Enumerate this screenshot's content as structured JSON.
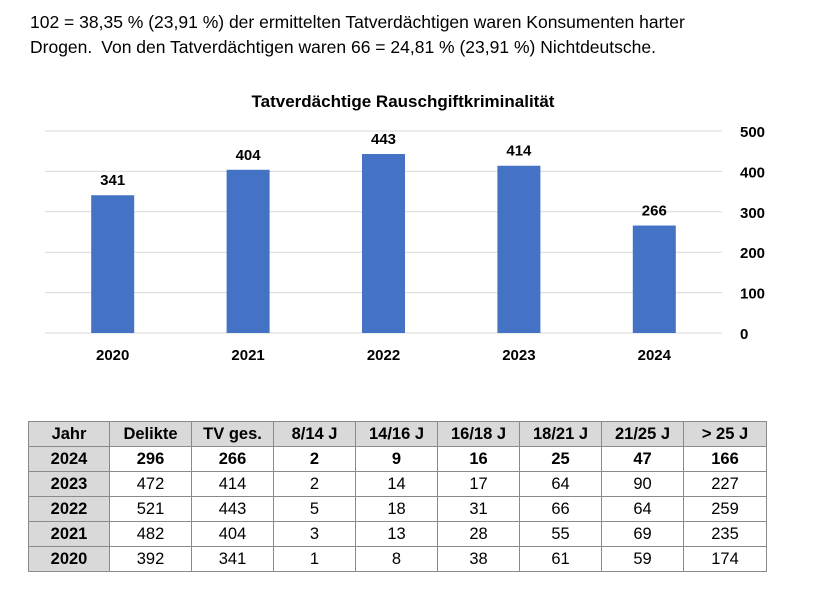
{
  "intro": {
    "line1": "102 = 38,35 % (23,91 %) der ermittelten Tatverdächtigen waren Konsumenten harter",
    "line2a": "Drogen.",
    "line2b": "Von den Tatverdächtigen waren 66 = 24,81 % (23,91 %) Nichtdeutsche."
  },
  "chart_data": {
    "type": "bar",
    "title": "Tatverdächtige Rauschgiftkriminalität",
    "categories": [
      "2020",
      "2021",
      "2022",
      "2023",
      "2024"
    ],
    "values": [
      341,
      404,
      443,
      414,
      266
    ],
    "ylim": [
      0,
      500
    ],
    "yticks": [
      0,
      100,
      200,
      300,
      400,
      500
    ],
    "y_axis_side": "right",
    "grid": true,
    "bar_color": "#4472c4",
    "grid_color": "#d9d9d9"
  },
  "table": {
    "headers": [
      "Jahr",
      "Delikte",
      "TV ges.",
      "8/14 J",
      "14/16 J",
      "16/18 J",
      "18/21 J",
      "21/25 J",
      "> 25 J"
    ],
    "rows": [
      [
        "2024",
        "296",
        "266",
        "2",
        "9",
        "16",
        "25",
        "47",
        "166"
      ],
      [
        "2023",
        "472",
        "414",
        "2",
        "14",
        "17",
        "64",
        "90",
        "227"
      ],
      [
        "2022",
        "521",
        "443",
        "5",
        "18",
        "31",
        "66",
        "64",
        "259"
      ],
      [
        "2021",
        "482",
        "404",
        "3",
        "13",
        "28",
        "55",
        "69",
        "235"
      ],
      [
        "2020",
        "392",
        "341",
        "1",
        "8",
        "38",
        "61",
        "59",
        "174"
      ]
    ]
  }
}
